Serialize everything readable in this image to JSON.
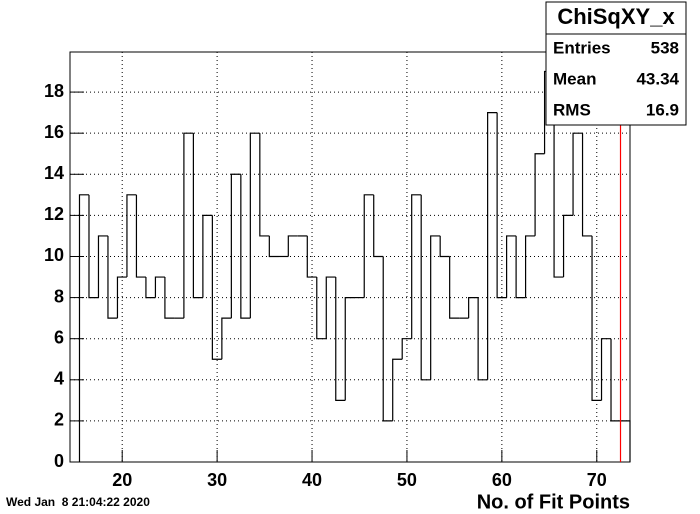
{
  "chart_data": {
    "type": "histogram",
    "bins": [
      15.5,
      16.5,
      17.5,
      18.5,
      19.5,
      20.5,
      21.5,
      22.5,
      23.5,
      24.5,
      25.5,
      26.5,
      27.5,
      28.5,
      29.5,
      30.5,
      31.5,
      32.5,
      33.5,
      34.5,
      35.5,
      36.5,
      37.5,
      38.5,
      39.5,
      40.5,
      41.5,
      42.5,
      43.5,
      44.5,
      45.5,
      46.5,
      47.5,
      48.5,
      49.5,
      50.5,
      51.5,
      52.5,
      53.5,
      54.5,
      55.5,
      56.5,
      57.5,
      58.5,
      59.5,
      60.5,
      61.5,
      62.5,
      63.5,
      64.5,
      65.5,
      66.5,
      67.5,
      68.5,
      69.5,
      70.5,
      71.5,
      72.5,
      73.5
    ],
    "values": [
      13,
      8,
      11,
      7,
      9,
      13,
      9,
      8,
      9,
      7,
      7,
      16,
      8,
      12,
      5,
      7,
      14,
      7,
      16,
      11,
      10,
      10,
      11,
      11,
      9,
      6,
      9,
      3,
      8,
      8,
      13,
      10,
      2,
      5,
      6,
      13,
      4,
      11,
      10,
      7,
      7,
      8,
      4,
      17,
      8,
      11,
      8,
      11,
      15,
      19,
      9,
      12,
      16,
      11,
      3,
      6,
      2,
      2
    ],
    "color": "#000000",
    "xlim": [
      14.5,
      73.5
    ],
    "xticks": [
      20,
      30,
      40,
      50,
      60,
      70
    ],
    "ylim": [
      0,
      19.95
    ],
    "yticks": [
      0,
      2,
      4,
      6,
      8,
      10,
      12,
      14,
      16,
      18
    ],
    "grid": true,
    "x_label": "No. of Fit Points",
    "marker_line": {
      "value": 72.5,
      "color": "#ff0000"
    },
    "stats": {
      "title": "ChiSqXY_x",
      "rows": [
        {
          "label": "Entries",
          "value": "538"
        },
        {
          "label": "Mean",
          "value": "43.34"
        },
        {
          "label": "RMS",
          "value": "16.9"
        }
      ]
    },
    "timestamp": "Wed Jan  8 21:04:22 2020"
  }
}
